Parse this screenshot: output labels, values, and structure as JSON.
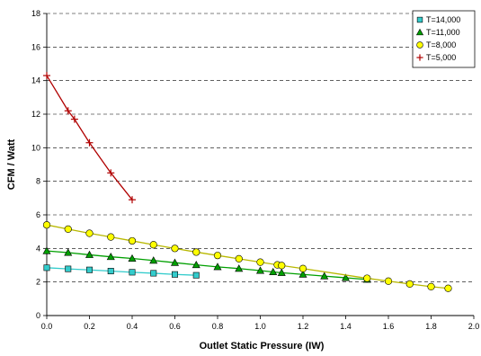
{
  "chart_data": {
    "type": "line",
    "title": "",
    "xlabel": "Outlet Static Pressure (IW)",
    "ylabel": "CFM / Watt",
    "xlim": [
      0,
      2
    ],
    "ylim": [
      0,
      18
    ],
    "x_ticks": [
      "0.0",
      "0.2",
      "0.4",
      "0.6",
      "0.8",
      "1.0",
      "1.2",
      "1.4",
      "1.6",
      "1.8",
      "2.0"
    ],
    "y_ticks": [
      "0",
      "2",
      "4",
      "6",
      "8",
      "10",
      "12",
      "14",
      "16",
      "18"
    ],
    "grid": "horizontal dashed",
    "legend_position": "top-right",
    "series": [
      {
        "name": "T=14,000",
        "marker": "square",
        "color": "#33cccc",
        "line_color": "#33cccc",
        "x": [
          0.0,
          0.1,
          0.2,
          0.3,
          0.4,
          0.5,
          0.6,
          0.7
        ],
        "y": [
          2.85,
          2.78,
          2.72,
          2.65,
          2.58,
          2.52,
          2.45,
          2.4
        ]
      },
      {
        "name": "T=11,000",
        "marker": "triangle",
        "color": "#00a000",
        "line_color": "#00a000",
        "x": [
          0.0,
          0.1,
          0.2,
          0.3,
          0.4,
          0.5,
          0.6,
          0.7,
          0.8,
          0.9,
          1.0,
          1.06,
          1.1,
          1.2,
          1.3,
          1.4,
          1.5
        ],
        "y": [
          3.85,
          3.75,
          3.62,
          3.5,
          3.4,
          3.28,
          3.15,
          3.02,
          2.9,
          2.8,
          2.68,
          2.6,
          2.55,
          2.45,
          2.35,
          2.25,
          2.15
        ]
      },
      {
        "name": "T=8,000",
        "marker": "circle",
        "color": "#ffff00",
        "line_color": "#b8b800",
        "x": [
          0.0,
          0.1,
          0.2,
          0.3,
          0.4,
          0.5,
          0.6,
          0.7,
          0.8,
          0.9,
          1.0,
          1.08,
          1.1,
          1.2,
          1.5,
          1.6,
          1.7,
          1.8,
          1.88
        ],
        "y": [
          5.4,
          5.15,
          4.9,
          4.68,
          4.45,
          4.22,
          4.0,
          3.78,
          3.58,
          3.38,
          3.18,
          3.02,
          2.98,
          2.8,
          2.22,
          2.05,
          1.88,
          1.72,
          1.62
        ]
      },
      {
        "name": "T=5,000",
        "marker": "plus",
        "color": "#b00000",
        "line_color": "#b00000",
        "x": [
          0.0,
          0.1,
          0.13,
          0.2,
          0.3,
          0.4
        ],
        "y": [
          14.3,
          12.2,
          11.7,
          10.3,
          8.5,
          6.9
        ]
      }
    ]
  }
}
